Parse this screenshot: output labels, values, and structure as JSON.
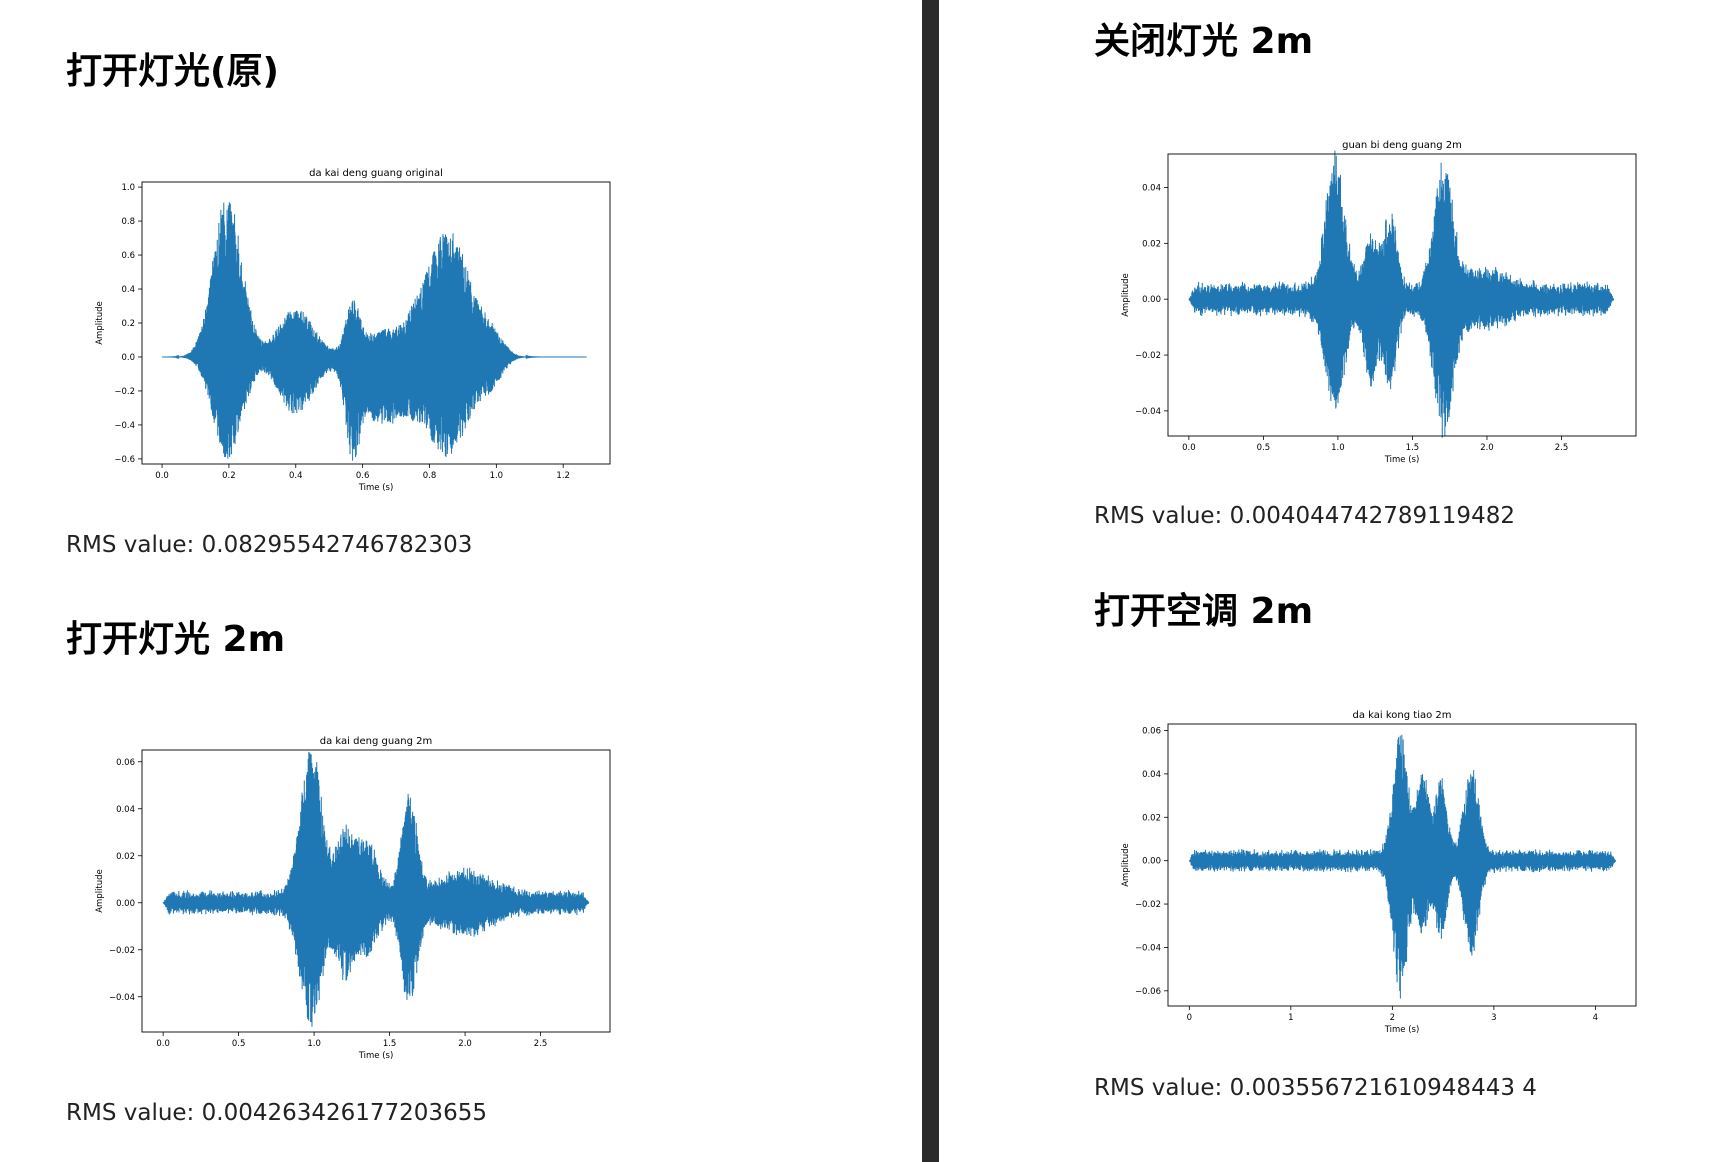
{
  "headings": {
    "h1": "打开灯光(原)",
    "h2": "打开灯光 2m",
    "h3": "关闭灯光 2m",
    "h4": "打开空调 2m"
  },
  "rms": {
    "r1": "RMS value: 0.08295542746782303",
    "r2": "RMS value: 0.004263426177203655",
    "r3": "RMS value: 0.004044742789119482",
    "r4": "RMS value: 0.003556721610948443 4"
  },
  "colors": {
    "waveform": "#1f77b4",
    "divider": "#2b2b2b"
  },
  "chart_data": [
    {
      "type": "line",
      "title": "da kai deng guang original",
      "xlabel": "Time (s)",
      "ylabel": "Amplitude",
      "xlim": [
        -0.06,
        1.34
      ],
      "ylim": [
        -0.63,
        1.03
      ],
      "xticks": [
        0.0,
        0.2,
        0.4,
        0.6,
        0.8,
        1.0,
        1.2
      ],
      "xtick_labels": [
        "0.0",
        "0.2",
        "0.4",
        "0.6",
        "0.8",
        "1.0",
        "1.2"
      ],
      "yticks": [
        -0.6,
        -0.4,
        -0.2,
        0.0,
        0.2,
        0.4,
        0.6,
        0.8,
        1.0
      ],
      "ytick_labels": [
        "−0.6",
        "−0.4",
        "−0.2",
        "0.0",
        "0.2",
        "0.4",
        "0.6",
        "0.8",
        "1.0"
      ],
      "duration": 1.27,
      "noise": 0.0,
      "segments": [
        {
          "center": 0.195,
          "width": 0.06,
          "pos": 0.96,
          "neg": 0.6
        },
        {
          "center": 0.265,
          "width": 0.02,
          "pos": 0.04,
          "neg": 0.04
        },
        {
          "center": 0.4,
          "width": 0.075,
          "pos": 0.29,
          "neg": 0.34
        },
        {
          "center": 0.57,
          "width": 0.028,
          "pos": 0.28,
          "neg": 0.45
        },
        {
          "center": 0.66,
          "width": 0.1,
          "pos": 0.15,
          "neg": 0.4
        },
        {
          "center": 0.75,
          "width": 0.018,
          "pos": 0.03,
          "neg": 0.03
        },
        {
          "center": 0.855,
          "width": 0.095,
          "pos": 0.75,
          "neg": 0.58
        },
        {
          "center": 0.99,
          "width": 0.045,
          "pos": 0.1,
          "neg": 0.12
        }
      ]
    },
    {
      "type": "line",
      "title": "da kai deng guang 2m",
      "xlabel": "Time (s)",
      "ylabel": "Amplitude",
      "xlim": [
        -0.14,
        2.96
      ],
      "ylim": [
        -0.055,
        0.065
      ],
      "xticks": [
        0.0,
        0.5,
        1.0,
        1.5,
        2.0,
        2.5
      ],
      "xtick_labels": [
        "0.0",
        "0.5",
        "1.0",
        "1.5",
        "2.0",
        "2.5"
      ],
      "yticks": [
        -0.04,
        -0.02,
        0.0,
        0.02,
        0.04,
        0.06
      ],
      "ytick_labels": [
        "−0.04",
        "−0.02",
        "0.00",
        "0.02",
        "0.04",
        "0.06"
      ],
      "duration": 2.82,
      "noise": 0.0055,
      "segments": [
        {
          "center": 0.98,
          "width": 0.1,
          "pos": 0.063,
          "neg": 0.049
        },
        {
          "center": 1.2,
          "width": 0.08,
          "pos": 0.027,
          "neg": 0.027
        },
        {
          "center": 1.35,
          "width": 0.1,
          "pos": 0.023,
          "neg": 0.018
        },
        {
          "center": 1.63,
          "width": 0.07,
          "pos": 0.043,
          "neg": 0.041
        },
        {
          "center": 2.0,
          "width": 0.25,
          "pos": 0.01,
          "neg": 0.01
        }
      ]
    },
    {
      "type": "line",
      "title": "guan bi deng guang 2m",
      "xlabel": "Time (s)",
      "ylabel": "Amplitude",
      "xlim": [
        -0.14,
        3.0
      ],
      "ylim": [
        -0.049,
        0.052
      ],
      "xticks": [
        0.0,
        0.5,
        1.0,
        1.5,
        2.0,
        2.5
      ],
      "xtick_labels": [
        "0.0",
        "0.5",
        "1.0",
        "1.5",
        "2.0",
        "2.5"
      ],
      "yticks": [
        -0.04,
        -0.02,
        0.0,
        0.02,
        0.04
      ],
      "ytick_labels": [
        "−0.04",
        "−0.02",
        "0.00",
        "0.02",
        "0.04"
      ],
      "duration": 2.85,
      "noise": 0.0065,
      "segments": [
        {
          "center": 0.98,
          "width": 0.09,
          "pos": 0.047,
          "neg": 0.036
        },
        {
          "center": 1.22,
          "width": 0.06,
          "pos": 0.019,
          "neg": 0.029
        },
        {
          "center": 1.35,
          "width": 0.06,
          "pos": 0.03,
          "neg": 0.028
        },
        {
          "center": 1.71,
          "width": 0.09,
          "pos": 0.044,
          "neg": 0.045
        },
        {
          "center": 2.0,
          "width": 0.2,
          "pos": 0.006,
          "neg": 0.006
        }
      ]
    },
    {
      "type": "line",
      "title": "da kai kong tiao 2m",
      "xlabel": "Time (s)",
      "ylabel": "Amplitude",
      "xlim": [
        -0.21,
        4.4
      ],
      "ylim": [
        -0.067,
        0.063
      ],
      "xticks": [
        0,
        1,
        2,
        3,
        4
      ],
      "xtick_labels": [
        "0",
        "1",
        "2",
        "3",
        "4"
      ],
      "yticks": [
        -0.06,
        -0.04,
        -0.02,
        0.0,
        0.02,
        0.04,
        0.06
      ],
      "ytick_labels": [
        "−0.06",
        "−0.04",
        "−0.02",
        "0.00",
        "0.02",
        "0.04",
        "0.06"
      ],
      "duration": 4.2,
      "noise": 0.0055,
      "segments": [
        {
          "center": 2.08,
          "width": 0.1,
          "pos": 0.057,
          "neg": 0.061
        },
        {
          "center": 2.3,
          "width": 0.08,
          "pos": 0.039,
          "neg": 0.029
        },
        {
          "center": 2.48,
          "width": 0.08,
          "pos": 0.034,
          "neg": 0.033
        },
        {
          "center": 2.78,
          "width": 0.1,
          "pos": 0.041,
          "neg": 0.041
        }
      ]
    }
  ]
}
